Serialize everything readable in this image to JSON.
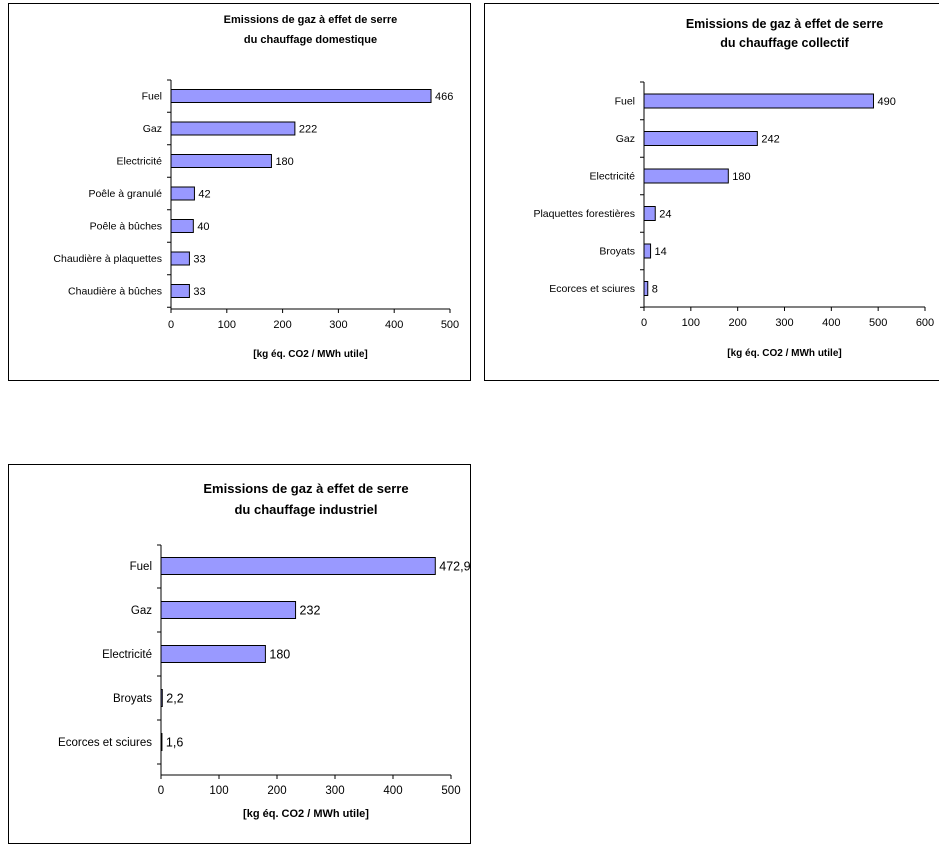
{
  "chart_data": [
    {
      "type": "bar",
      "orientation": "horizontal",
      "title": "Emissions de gaz à effet de serre",
      "subtitle": "du chauffage domestique",
      "xlabel": "[kg éq. CO2 / MWh utile]",
      "ylabel": "",
      "categories": [
        "Fuel",
        "Gaz",
        "Electricité",
        "Poêle à granulé",
        "Poêle à bûches",
        "Chaudière à plaquettes",
        "Chaudière à bûches"
      ],
      "values": [
        466,
        222,
        180,
        42,
        40,
        33,
        33
      ],
      "value_labels": [
        "466",
        "222",
        "180",
        "42",
        "40",
        "33",
        "33"
      ],
      "xlim": [
        0,
        500
      ],
      "xticks": [
        "0",
        "100",
        "200",
        "300",
        "400",
        "500"
      ],
      "grid": false,
      "bar_color": "#9999ff"
    },
    {
      "type": "bar",
      "orientation": "horizontal",
      "title": "Emissions de gaz à effet de serre",
      "subtitle": "du chauffage collectif",
      "xlabel": "[kg éq. CO2 / MWh utile]",
      "ylabel": "",
      "categories": [
        "Fuel",
        "Gaz",
        "Electricité",
        "Plaquettes forestières",
        "Broyats",
        "Ecorces et sciures"
      ],
      "values": [
        490,
        242,
        180,
        24,
        14,
        8
      ],
      "value_labels": [
        "490",
        "242",
        "180",
        "24",
        "14",
        "8"
      ],
      "xlim": [
        0,
        600
      ],
      "xticks": [
        "0",
        "100",
        "200",
        "300",
        "400",
        "500",
        "600"
      ],
      "grid": false,
      "bar_color": "#9999ff"
    },
    {
      "type": "bar",
      "orientation": "horizontal",
      "title": "Emissions de gaz à effet de serre",
      "subtitle": "du chauffage industriel",
      "xlabel": "[kg éq. CO2 / MWh utile]",
      "ylabel": "",
      "categories": [
        "Fuel",
        "Gaz",
        "Electricité",
        "Broyats",
        "Ecorces et sciures"
      ],
      "values": [
        472.9,
        232,
        180,
        2.2,
        1.6
      ],
      "value_labels": [
        "472,9",
        "232",
        "180",
        "2,2",
        "1,6"
      ],
      "xlim": [
        0,
        500
      ],
      "xticks": [
        "0",
        "100",
        "200",
        "300",
        "400",
        "500"
      ],
      "grid": false,
      "bar_color": "#9999ff"
    }
  ]
}
